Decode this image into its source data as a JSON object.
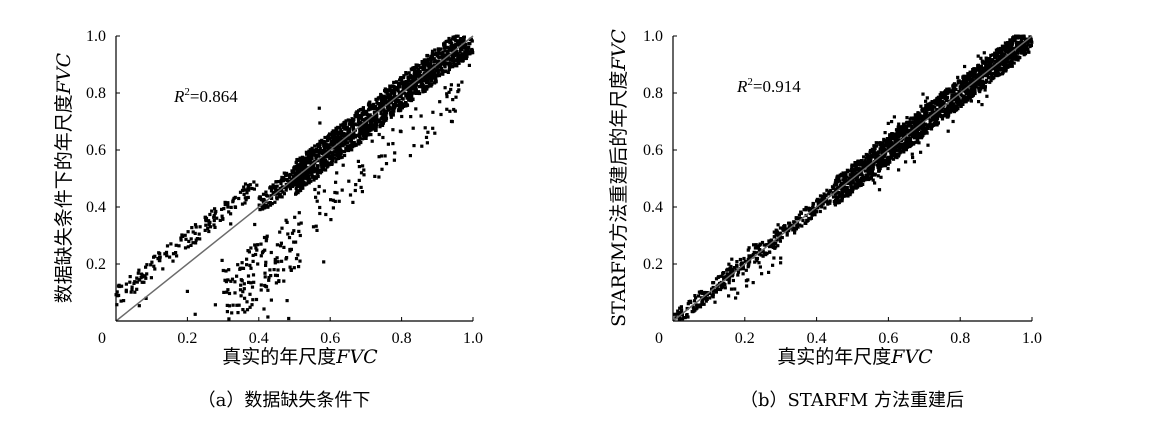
{
  "chart_data": [
    {
      "type": "scatter",
      "panel": "a",
      "caption": "（a）数据缺失条件下",
      "xlabel": "真实的年尺度",
      "xlabel_var": "FVC",
      "ylabel": "数据缺失条件下的年尺度",
      "ylabel_var": "FVC",
      "annotation": {
        "symbol": "R",
        "sup": "2",
        "value": "=0.864"
      },
      "xlim": [
        0,
        1.0
      ],
      "ylim": [
        0,
        1.0
      ],
      "x_ticks": [
        "0.2",
        "0.4",
        "0.6",
        "0.8",
        "1.0"
      ],
      "y_ticks": [
        "0.2",
        "0.4",
        "0.6",
        "0.8",
        "1.0"
      ],
      "origin_label": "0",
      "fit_line": {
        "from": [
          0,
          0
        ],
        "to": [
          1.0,
          1.0
        ],
        "color": "#6b6b6b"
      },
      "grid": false,
      "legend": "none",
      "marker_color": "#000000",
      "series": [
        {
          "clusters": [
            {
              "xr": [
                0.5,
                1.0
              ],
              "offset": [
                -0.06,
                0.06
              ],
              "n": 1500
            },
            {
              "xr": [
                0.4,
                0.55
              ],
              "offset": [
                -0.03,
                0.04
              ],
              "n": 180
            },
            {
              "xr": [
                0.0,
                0.4
              ],
              "offset": [
                0.05,
                0.12
              ],
              "n": 160
            },
            {
              "xr": [
                0.3,
                0.52
              ],
              "offset": [
                -0.33,
                -0.12
              ],
              "n": 140
            },
            {
              "xr": [
                0.55,
                1.0
              ],
              "offset": [
                -0.25,
                -0.08
              ],
              "n": 90
            },
            {
              "xr": [
                0.0,
                0.6
              ],
              "offset": [
                -0.6,
                0.25
              ],
              "n": 40
            }
          ]
        }
      ]
    },
    {
      "type": "scatter",
      "panel": "b",
      "caption": "（b）STARFM 方法重建后",
      "xlabel": "真实的年尺度",
      "xlabel_var": "FVC",
      "ylabel": "STARFM方法重建后的年尺度",
      "ylabel_var": "FVC",
      "annotation": {
        "symbol": "R",
        "sup": "2",
        "value": "=0.914"
      },
      "xlim": [
        0,
        1.0
      ],
      "ylim": [
        0,
        1.0
      ],
      "x_ticks": [
        "0.2",
        "0.4",
        "0.6",
        "0.8",
        "1.0"
      ],
      "y_ticks": [
        "0.2",
        "0.4",
        "0.6",
        "0.8",
        "1.0"
      ],
      "origin_label": "0",
      "fit_line": {
        "from": [
          0,
          0
        ],
        "to": [
          1.0,
          1.0
        ],
        "color": "#6b6b6b"
      },
      "grid": false,
      "legend": "none",
      "marker_color": "#000000",
      "series": [
        {
          "clusters": [
            {
              "xr": [
                0.45,
                1.0
              ],
              "offset": [
                -0.05,
                0.05
              ],
              "n": 1700
            },
            {
              "xr": [
                0.0,
                0.45
              ],
              "offset": [
                -0.03,
                0.03
              ],
              "n": 350
            },
            {
              "xr": [
                0.1,
                0.3
              ],
              "offset": [
                -0.1,
                0.06
              ],
              "n": 40
            },
            {
              "xr": [
                0.55,
                0.95
              ],
              "offset": [
                -0.12,
                0.1
              ],
              "n": 80
            }
          ]
        }
      ]
    }
  ]
}
